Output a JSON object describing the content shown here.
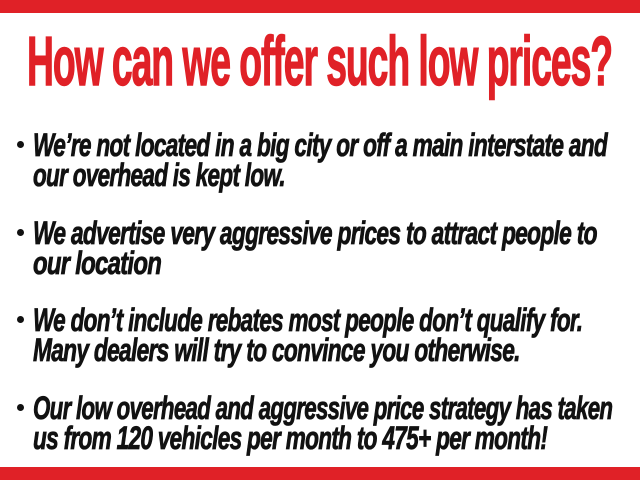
{
  "colors": {
    "accent_red": "#e02127",
    "text_black": "#111111",
    "background": "#ffffff"
  },
  "header": {
    "title": "How can we offer such low prices?"
  },
  "bullets": [
    {
      "lines": [
        "We’re not located in a big city or off a main interstate and",
        "our overhead is kept low."
      ]
    },
    {
      "lines": [
        "We advertise very aggressive prices to attract people to",
        "our location"
      ]
    },
    {
      "lines": [
        "We don’t include rebates most people don’t qualify for.",
        "Many dealers will try to convince you otherwise."
      ]
    },
    {
      "lines": [
        "Our low overhead and aggressive price strategy has taken",
        "us from 120 vehicles per month to 475+ per month!"
      ]
    }
  ]
}
